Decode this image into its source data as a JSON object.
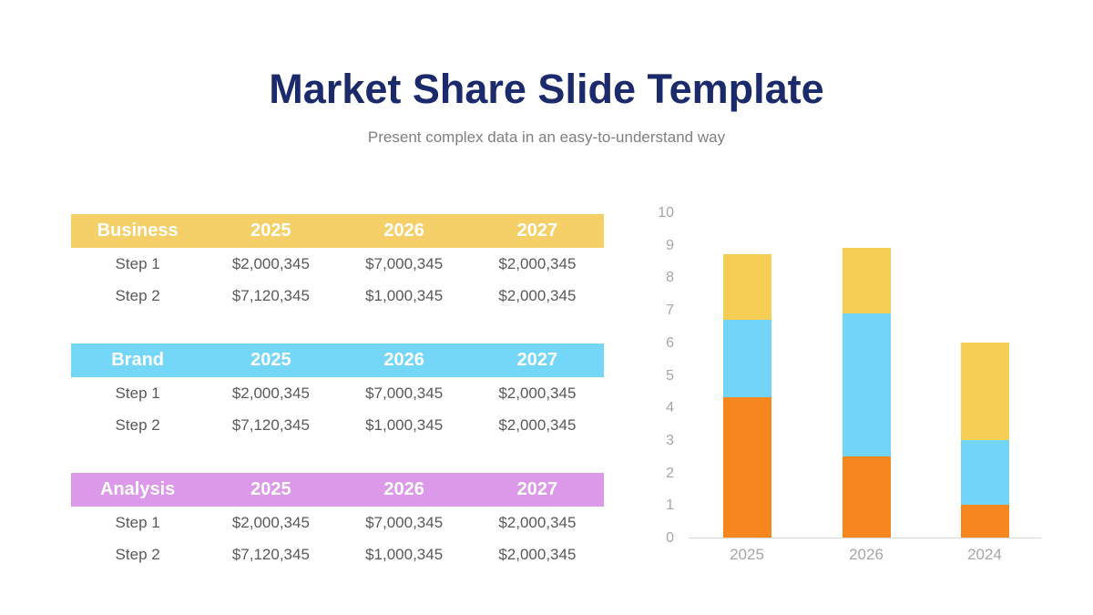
{
  "slide": {
    "title": "Market Share Slide Template",
    "subtitle": "Present complex data in an easy-to-understand way",
    "title_color": "#1B2A6B",
    "subtitle_color": "#7F7F7F",
    "background": "#FFFFFF"
  },
  "tables": [
    {
      "name": "Business",
      "header_color": "#F5D068",
      "columns": [
        "Business",
        "2025",
        "2026",
        "2027"
      ],
      "rows": [
        [
          "Step 1",
          "$2,000,345",
          "$7,000,345",
          "$2,000,345"
        ],
        [
          "Step 2",
          "$7,120,345",
          "$1,000,345",
          "$2,000,345"
        ]
      ]
    },
    {
      "name": "Brand",
      "header_color": "#75D7F8",
      "columns": [
        "Brand",
        "2025",
        "2026",
        "2027"
      ],
      "rows": [
        [
          "Step 1",
          "$2,000,345",
          "$7,000,345",
          "$2,000,345"
        ],
        [
          "Step 2",
          "$7,120,345",
          "$1,000,345",
          "$2,000,345"
        ]
      ]
    },
    {
      "name": "Analysis",
      "header_color": "#DD99E9",
      "columns": [
        "Analysis",
        "2025",
        "2026",
        "2027"
      ],
      "rows": [
        [
          "Step 1",
          "$2,000,345",
          "$7,000,345",
          "$2,000,345"
        ],
        [
          "Step 2",
          "$7,120,345",
          "$1,000,345",
          "$2,000,345"
        ]
      ]
    }
  ],
  "chart_data": {
    "type": "bar",
    "stacked": true,
    "title": "",
    "xlabel": "",
    "ylabel": "",
    "categories": [
      "2025",
      "2026",
      "2024"
    ],
    "series": [
      {
        "name": "orange",
        "color": "#F6871F",
        "values": [
          4.3,
          2.5,
          1.0
        ]
      },
      {
        "name": "blue",
        "color": "#72D4F7",
        "values": [
          2.4,
          4.4,
          2.0
        ]
      },
      {
        "name": "yellow",
        "color": "#F6CE55",
        "values": [
          2.0,
          2.0,
          3.0
        ]
      }
    ],
    "totals": [
      8.7,
      8.9,
      6.0
    ],
    "ylim": [
      0,
      10
    ],
    "yticks": [
      "0",
      "1",
      "2",
      "3",
      "4",
      "5",
      "6",
      "7",
      "8",
      "9",
      "10"
    ],
    "grid": false,
    "legend": "none",
    "tick_color": "#A6A6A6",
    "axis_line_color": "#D9D9D9"
  }
}
